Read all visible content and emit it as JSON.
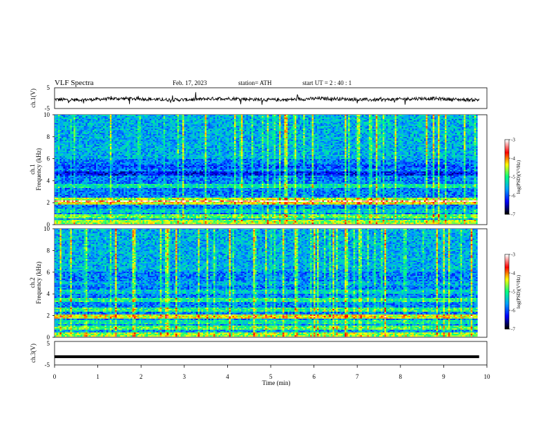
{
  "header": {
    "title": "VLF  Spectra",
    "date": "Feb. 17, 2023",
    "station": "station= ATH",
    "start_ut": "start  UT  =   2  : 40 : 1"
  },
  "chart_data": {
    "type": "heatmap",
    "time_axis": {
      "label": "Time  (min)",
      "range": [
        0,
        10
      ],
      "ticks": [
        "0",
        "1",
        "2",
        "3",
        "4",
        "5",
        "6",
        "7",
        "8",
        "9",
        "10"
      ]
    },
    "panels": [
      {
        "id": "ch1-waveform",
        "type": "line",
        "ylabel": "ch.1(V)",
        "ylim": [
          -5,
          5
        ],
        "yticks": [
          "5",
          "-5"
        ],
        "baseline": -0.5,
        "x_end_min": 9.82
      },
      {
        "id": "ch1-spectrogram",
        "type": "heatmap",
        "ylabel": "ch.1\nFrequency  (kHz)",
        "ylim": [
          0,
          10
        ],
        "yticks": [
          "0",
          "2",
          "4",
          "6",
          "8",
          "10"
        ],
        "x_end_min": 9.82,
        "colorbar": {
          "label": "log(PSD)(V²/Hz)",
          "ticks": [
            "-3",
            "-4",
            "-5",
            "-6",
            "-7"
          ],
          "range": [
            -7,
            -3
          ]
        }
      },
      {
        "id": "ch2-spectrogram",
        "type": "heatmap",
        "ylabel": "ch.2\nFrequency  (kHz)",
        "ylim": [
          0,
          10
        ],
        "yticks": [
          "0",
          "2",
          "4",
          "6",
          "8",
          "10"
        ],
        "x_end_min": 9.82,
        "colorbar": {
          "label": "log(PSD)(V²/Hz)",
          "ticks": [
            "-3",
            "-4",
            "-5",
            "-6",
            "-7"
          ],
          "range": [
            -7,
            -3
          ]
        }
      },
      {
        "id": "ch3-waveform",
        "type": "line",
        "ylabel": "ch.3(V)",
        "ylim": [
          -5,
          5
        ],
        "yticks": [
          "5",
          "-5"
        ],
        "baseline": -1.5,
        "x_end_min": 9.82
      }
    ],
    "colormap": [
      "#000000",
      "#0000ff",
      "#00a0ff",
      "#00ff80",
      "#ffff00",
      "#ff0000",
      "#ffffff"
    ]
  }
}
